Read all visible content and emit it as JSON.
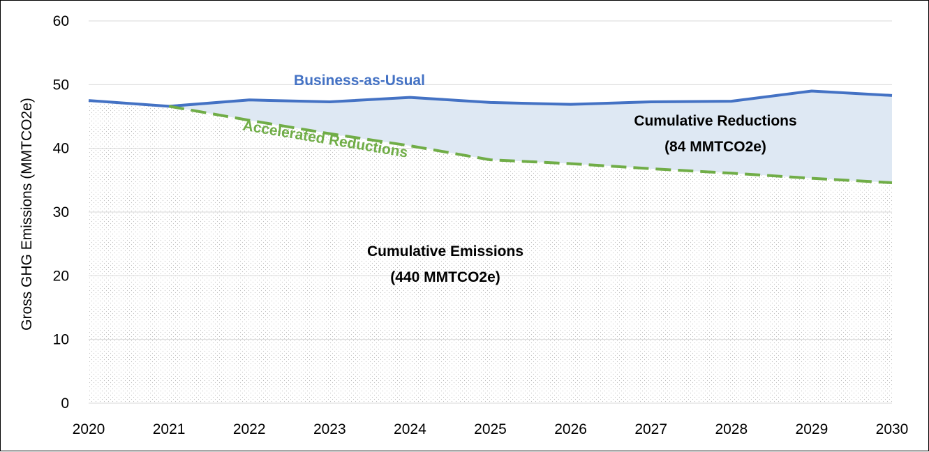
{
  "chart_data": {
    "type": "area",
    "title": "",
    "xlabel": "",
    "ylabel": "Gross GHG Emissions (MMTCO2e)",
    "x": [
      "2020",
      "2021",
      "2022",
      "2023",
      "2024",
      "2025",
      "2026",
      "2027",
      "2028",
      "2029",
      "2030"
    ],
    "ylim": [
      0,
      60
    ],
    "yticks": [
      "0",
      "10",
      "20",
      "30",
      "40",
      "50",
      "60"
    ],
    "grid": true,
    "series": [
      {
        "name": "Business-as-Usual",
        "color": "#4472C4",
        "style": "solid",
        "values": [
          47.5,
          46.6,
          47.6,
          47.3,
          48.0,
          47.2,
          46.9,
          47.3,
          47.4,
          49.0,
          48.3
        ]
      },
      {
        "name": "Accelerated Reductions",
        "color": "#70AD47",
        "style": "dashed",
        "values": [
          null,
          46.6,
          44.4,
          42.3,
          40.4,
          38.2,
          37.6,
          36.8,
          36.1,
          35.3,
          34.6
        ]
      }
    ],
    "annotations": {
      "reductions_line1": "Cumulative Reductions",
      "reductions_line2": "(84 MMTCO2e)",
      "emissions_line1": "Cumulative Emissions",
      "emissions_line2": "(440 MMTCO2e)"
    },
    "colors": {
      "reductions_fill": "#DEE8F3",
      "emissions_dots": "#BFBFBF",
      "grid": "#D9D9D9"
    }
  }
}
